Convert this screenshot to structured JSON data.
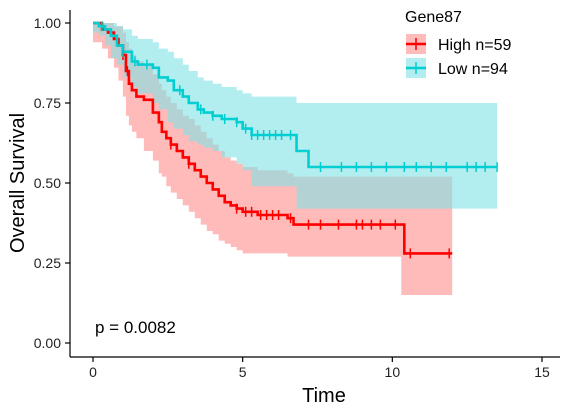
{
  "chart_data": {
    "type": "line",
    "subtype": "kaplan-meier",
    "xlabel": "Time",
    "ylabel": "Overall Survival",
    "xlim": [
      0,
      15
    ],
    "ylim": [
      0,
      1
    ],
    "x_ticks": [
      "0",
      "5",
      "10",
      "15"
    ],
    "y_ticks": [
      "0.00",
      "0.25",
      "0.50",
      "0.75",
      "1.00"
    ],
    "x_tick_values": [
      0,
      5,
      10,
      15
    ],
    "y_tick_values": [
      0,
      0.25,
      0.5,
      0.75,
      1.0
    ],
    "legend_title": "Gene87",
    "legend_position": "top-right",
    "annotation": "p = 0.0082",
    "grid": false,
    "series": [
      {
        "name": "High n=59",
        "color": "#FF0000",
        "band_color": "#FF8C8C",
        "x": [
          0,
          0.3,
          0.5,
          0.7,
          0.85,
          1.0,
          1.1,
          1.2,
          1.3,
          1.45,
          1.7,
          2.0,
          2.2,
          2.3,
          2.45,
          2.6,
          2.8,
          3.0,
          3.2,
          3.4,
          3.6,
          3.8,
          4.0,
          4.2,
          4.4,
          4.6,
          4.8,
          5.0,
          5.5,
          6.5,
          6.7,
          10.3,
          10.4,
          12.0
        ],
        "y": [
          1.0,
          0.98,
          0.97,
          0.95,
          0.93,
          0.9,
          0.85,
          0.81,
          0.79,
          0.77,
          0.76,
          0.72,
          0.69,
          0.66,
          0.64,
          0.62,
          0.6,
          0.58,
          0.56,
          0.54,
          0.52,
          0.5,
          0.48,
          0.46,
          0.44,
          0.43,
          0.42,
          0.41,
          0.4,
          0.39,
          0.37,
          0.37,
          0.28,
          0.28
        ],
        "upper": [
          1.0,
          1.0,
          1.0,
          0.99,
          0.99,
          0.97,
          0.94,
          0.92,
          0.9,
          0.88,
          0.87,
          0.84,
          0.81,
          0.79,
          0.77,
          0.75,
          0.73,
          0.71,
          0.7,
          0.68,
          0.66,
          0.64,
          0.62,
          0.6,
          0.58,
          0.57,
          0.56,
          0.55,
          0.54,
          0.53,
          0.52,
          0.52,
          0.52,
          0.52
        ],
        "lower": [
          1.0,
          0.94,
          0.92,
          0.89,
          0.86,
          0.82,
          0.77,
          0.71,
          0.68,
          0.66,
          0.64,
          0.6,
          0.57,
          0.53,
          0.52,
          0.49,
          0.47,
          0.45,
          0.43,
          0.41,
          0.39,
          0.37,
          0.35,
          0.34,
          0.32,
          0.31,
          0.3,
          0.29,
          0.28,
          0.28,
          0.27,
          0.27,
          0.15,
          0.15
        ],
        "censor_x": [
          1.0,
          1.15,
          2.6,
          3.2,
          4.8,
          5.1,
          5.3,
          5.6,
          5.8,
          6.0,
          6.2,
          6.6,
          7.2,
          7.6,
          8.2,
          8.8,
          9.0,
          9.3,
          9.6,
          10.1,
          10.6,
          11.9
        ]
      },
      {
        "name": "Low n=94",
        "color": "#00CED1",
        "band_color": "#7FE3E6",
        "x": [
          0,
          0.2,
          0.4,
          0.6,
          0.8,
          1.0,
          1.3,
          1.5,
          2.0,
          2.2,
          2.5,
          2.7,
          3.0,
          3.2,
          3.5,
          3.7,
          4.0,
          4.3,
          4.8,
          5.0,
          5.3,
          6.8,
          7.2,
          13.5
        ],
        "y": [
          1.0,
          0.99,
          0.98,
          0.96,
          0.93,
          0.91,
          0.88,
          0.87,
          0.86,
          0.83,
          0.82,
          0.79,
          0.77,
          0.75,
          0.73,
          0.72,
          0.71,
          0.7,
          0.69,
          0.67,
          0.65,
          0.6,
          0.55,
          0.55
        ],
        "upper": [
          1.0,
          1.0,
          1.0,
          1.0,
          0.99,
          0.98,
          0.96,
          0.95,
          0.94,
          0.92,
          0.91,
          0.89,
          0.87,
          0.85,
          0.83,
          0.82,
          0.81,
          0.8,
          0.79,
          0.78,
          0.77,
          0.75,
          0.75,
          0.75
        ],
        "lower": [
          1.0,
          0.97,
          0.96,
          0.93,
          0.89,
          0.87,
          0.83,
          0.8,
          0.78,
          0.75,
          0.73,
          0.69,
          0.67,
          0.65,
          0.63,
          0.62,
          0.61,
          0.6,
          0.58,
          0.56,
          0.54,
          0.49,
          0.42,
          0.42
        ],
        "censor_x": [
          0.3,
          1.0,
          1.4,
          1.8,
          2.9,
          3.6,
          4.0,
          4.4,
          4.8,
          5.1,
          5.3,
          5.5,
          5.7,
          5.9,
          6.1,
          6.3,
          6.6,
          7.6,
          8.3,
          8.8,
          9.3,
          9.8,
          10.4,
          10.8,
          11.3,
          11.8,
          12.5,
          12.8,
          13.1,
          13.5
        ]
      }
    ]
  }
}
